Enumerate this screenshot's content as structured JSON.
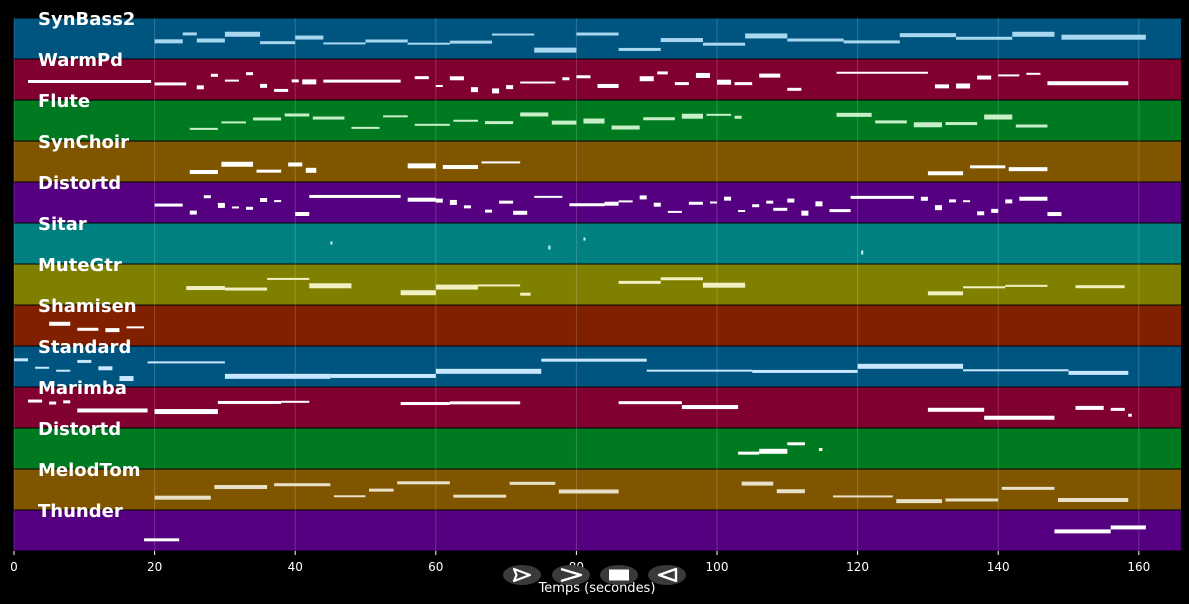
{
  "chart_data": {
    "type": "piano-roll",
    "xlabel": "Temps (secondes)",
    "xlim": [
      0,
      166
    ],
    "xticks": [
      0,
      20,
      40,
      60,
      80,
      100,
      120,
      140,
      160
    ],
    "grid": true,
    "tracks": [
      {
        "name": "SynBass2",
        "color": "#005580",
        "note_color": "#a8d8f0",
        "notes": [
          [
            20,
            24
          ],
          [
            24,
            26
          ],
          [
            26,
            30
          ],
          [
            30,
            35
          ],
          [
            35,
            40
          ],
          [
            40,
            44
          ],
          [
            44,
            50
          ],
          [
            50,
            56
          ],
          [
            56,
            62
          ],
          [
            62,
            68
          ],
          [
            68,
            74
          ],
          [
            74,
            80
          ],
          [
            80,
            86
          ],
          [
            86,
            92
          ],
          [
            92,
            98
          ],
          [
            98,
            104
          ],
          [
            104,
            110
          ],
          [
            110,
            118
          ],
          [
            118,
            126
          ],
          [
            126,
            134
          ],
          [
            134,
            142
          ],
          [
            142,
            148
          ],
          [
            149,
            161
          ]
        ]
      },
      {
        "name": "WarmPd",
        "color": "#800030",
        "note_color": "#ffffff",
        "notes": [
          [
            2,
            19.5
          ],
          [
            20,
            24.5
          ],
          [
            26,
            27
          ],
          [
            28,
            29
          ],
          [
            30,
            32
          ],
          [
            33,
            34
          ],
          [
            35,
            36
          ],
          [
            37,
            39
          ],
          [
            39.5,
            40.5
          ],
          [
            41,
            43
          ],
          [
            44,
            55
          ],
          [
            57,
            59
          ],
          [
            60,
            61
          ],
          [
            62,
            64
          ],
          [
            65,
            66
          ],
          [
            68,
            69
          ],
          [
            70,
            71
          ],
          [
            72,
            77
          ],
          [
            78,
            79
          ],
          [
            80,
            82
          ],
          [
            83,
            86
          ],
          [
            89,
            91
          ],
          [
            91.5,
            93
          ],
          [
            94,
            96
          ],
          [
            97,
            99
          ],
          [
            100,
            102
          ],
          [
            102.5,
            105
          ],
          [
            106,
            109
          ],
          [
            110,
            112
          ],
          [
            117,
            130
          ],
          [
            131,
            133
          ],
          [
            134,
            136
          ],
          [
            137,
            139
          ],
          [
            140,
            143
          ],
          [
            144,
            146
          ],
          [
            147,
            158.5
          ]
        ]
      },
      {
        "name": "Flute",
        "color": "#007a20",
        "note_color": "#c8f0c8",
        "notes": [
          [
            25,
            29
          ],
          [
            29.5,
            33
          ],
          [
            34,
            38
          ],
          [
            38.5,
            42
          ],
          [
            42.5,
            47
          ],
          [
            48,
            52
          ],
          [
            52.5,
            56
          ],
          [
            57,
            62
          ],
          [
            62.5,
            66
          ],
          [
            67,
            71
          ],
          [
            72,
            76
          ],
          [
            76.5,
            80
          ],
          [
            81,
            84
          ],
          [
            85,
            89
          ],
          [
            89.5,
            94
          ],
          [
            95,
            98
          ],
          [
            98.5,
            102
          ],
          [
            102.5,
            103.5
          ],
          [
            117,
            122
          ],
          [
            122.5,
            127
          ],
          [
            128,
            132
          ],
          [
            132.5,
            137
          ],
          [
            138,
            142
          ],
          [
            142.5,
            147
          ]
        ]
      },
      {
        "name": "SynChoir",
        "color": "#805500",
        "note_color": "#ffffff",
        "notes": [
          [
            25,
            29
          ],
          [
            29.5,
            34
          ],
          [
            34.5,
            38
          ],
          [
            39,
            41
          ],
          [
            41.5,
            43
          ],
          [
            56,
            60
          ],
          [
            61,
            66
          ],
          [
            66.5,
            72
          ],
          [
            130,
            135
          ],
          [
            136,
            141
          ],
          [
            141.5,
            147
          ]
        ]
      },
      {
        "name": "Distortd",
        "color": "#550080",
        "note_color": "#ffffff",
        "notes": [
          [
            20,
            24
          ],
          [
            25,
            26
          ],
          [
            27,
            28
          ],
          [
            29,
            30
          ],
          [
            31,
            32
          ],
          [
            33,
            34
          ],
          [
            35,
            36
          ],
          [
            37,
            38
          ],
          [
            40,
            42
          ],
          [
            42,
            55
          ],
          [
            56,
            60
          ],
          [
            60,
            61
          ],
          [
            62,
            63
          ],
          [
            64,
            65
          ],
          [
            67,
            68
          ],
          [
            69,
            71
          ],
          [
            71,
            73
          ],
          [
            74,
            78
          ],
          [
            79,
            84
          ],
          [
            84,
            86
          ],
          [
            86,
            88
          ],
          [
            89,
            90
          ],
          [
            91,
            92
          ],
          [
            93,
            95
          ],
          [
            96,
            98
          ],
          [
            99,
            100
          ],
          [
            101,
            102
          ],
          [
            103,
            104
          ],
          [
            105,
            106
          ],
          [
            107,
            108
          ],
          [
            108,
            110
          ],
          [
            110,
            111
          ],
          [
            112,
            113
          ],
          [
            114,
            115
          ],
          [
            116,
            119
          ],
          [
            119,
            128
          ],
          [
            129,
            130
          ],
          [
            131,
            132
          ],
          [
            133,
            134
          ],
          [
            135,
            136
          ],
          [
            137,
            138
          ],
          [
            139,
            140
          ],
          [
            141,
            142
          ],
          [
            143,
            147
          ],
          [
            147,
            149
          ]
        ]
      },
      {
        "name": "Sitar",
        "color": "#008080",
        "note_color": "#c8f0f0",
        "notes": [
          [
            45,
            45.3
          ],
          [
            76,
            76.3
          ],
          [
            81,
            81.3
          ],
          [
            120.5,
            120.8
          ]
        ]
      },
      {
        "name": "MuteGtr",
        "color": "#808000",
        "note_color": "#f0f0c0",
        "notes": [
          [
            24.5,
            30
          ],
          [
            30,
            36
          ],
          [
            36,
            42
          ],
          [
            42,
            48
          ],
          [
            55,
            60
          ],
          [
            60,
            66
          ],
          [
            66,
            72
          ],
          [
            72,
            73.5
          ],
          [
            86,
            92
          ],
          [
            92,
            98
          ],
          [
            98,
            104
          ],
          [
            130,
            135
          ],
          [
            135,
            141
          ],
          [
            141,
            147
          ],
          [
            151,
            158
          ]
        ]
      },
      {
        "name": "Shamisen",
        "color": "#802000",
        "note_color": "#ffffff",
        "notes": [
          [
            5,
            8
          ],
          [
            9,
            12
          ],
          [
            13,
            15
          ],
          [
            16,
            18.5
          ]
        ]
      },
      {
        "name": "Standard",
        "color": "#005580",
        "note_color": "#c8e8ff",
        "notes": [
          [
            0,
            2
          ],
          [
            3,
            5
          ],
          [
            6,
            8
          ],
          [
            9,
            11
          ],
          [
            12,
            14
          ],
          [
            15,
            17
          ],
          [
            19,
            30
          ],
          [
            30,
            45
          ],
          [
            45,
            60
          ],
          [
            60,
            75
          ],
          [
            75,
            90
          ],
          [
            90,
            105
          ],
          [
            105,
            120
          ],
          [
            120,
            135
          ],
          [
            135,
            150
          ],
          [
            150,
            158.5
          ]
        ]
      },
      {
        "name": "Marimba",
        "color": "#800030",
        "note_color": "#ffffff",
        "notes": [
          [
            2,
            4
          ],
          [
            5,
            6
          ],
          [
            7,
            8
          ],
          [
            9,
            19
          ],
          [
            20,
            29
          ],
          [
            29,
            38
          ],
          [
            38,
            42
          ],
          [
            55,
            62
          ],
          [
            62,
            72
          ],
          [
            86,
            95
          ],
          [
            95,
            103
          ],
          [
            130,
            138
          ],
          [
            138,
            148
          ],
          [
            151,
            155
          ],
          [
            156,
            158
          ],
          [
            158.5,
            159
          ]
        ]
      },
      {
        "name": "Distortd",
        "color": "#007a20",
        "note_color": "#ffffff",
        "notes": [
          [
            103,
            106
          ],
          [
            106,
            110
          ],
          [
            110,
            112.5
          ],
          [
            114.5,
            115
          ]
        ]
      },
      {
        "name": "MelodTom",
        "color": "#805500",
        "note_color": "#e8e0c8",
        "notes": [
          [
            20,
            28
          ],
          [
            28.5,
            36
          ],
          [
            37,
            45
          ],
          [
            45.5,
            50
          ],
          [
            50.5,
            54
          ],
          [
            54.5,
            62
          ],
          [
            62.5,
            70
          ],
          [
            70.5,
            77
          ],
          [
            77.5,
            86
          ],
          [
            103.5,
            108
          ],
          [
            108.5,
            112.5
          ],
          [
            116.5,
            125
          ],
          [
            125.5,
            132
          ],
          [
            132.5,
            140
          ],
          [
            140.5,
            148
          ],
          [
            148.5,
            158.5
          ]
        ]
      },
      {
        "name": "Thunder",
        "color": "#550080",
        "note_color": "#ffffff",
        "notes": [
          [
            18.5,
            23.5
          ],
          [
            148,
            156
          ],
          [
            156,
            161
          ]
        ]
      }
    ]
  },
  "controls": [
    {
      "name": "play-button",
      "icon": "play-icon"
    },
    {
      "name": "fast-forward-button",
      "icon": "fast-forward-icon"
    },
    {
      "name": "stop-button",
      "icon": "stop-icon"
    },
    {
      "name": "rewind-button",
      "icon": "rewind-icon"
    }
  ]
}
